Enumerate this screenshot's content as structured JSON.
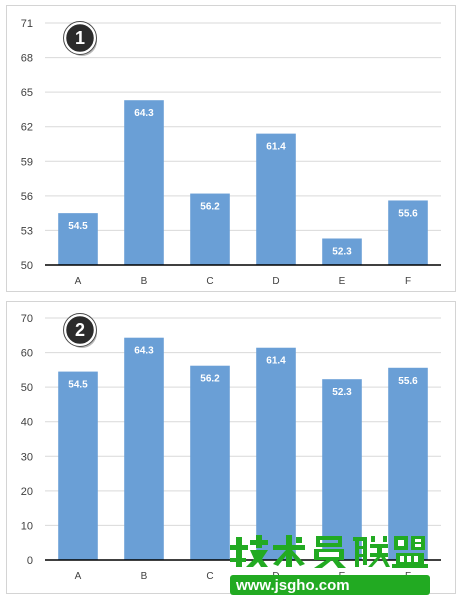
{
  "chart_data": [
    {
      "type": "bar",
      "badge": "1",
      "categories": [
        "A",
        "B",
        "C",
        "D",
        "E",
        "F"
      ],
      "values": [
        54.5,
        64.3,
        56.2,
        61.4,
        52.3,
        55.6
      ],
      "ylim": [
        50,
        71
      ],
      "yticks": [
        50,
        53,
        56,
        59,
        62,
        65,
        68,
        71
      ],
      "grid": true,
      "bar_color": "#6a9fd6"
    },
    {
      "type": "bar",
      "badge": "2",
      "categories": [
        "A",
        "B",
        "C",
        "D",
        "E",
        "F"
      ],
      "values": [
        54.5,
        64.3,
        56.2,
        61.4,
        52.3,
        55.6
      ],
      "ylim": [
        0,
        70
      ],
      "yticks": [
        0,
        10,
        20,
        30,
        40,
        50,
        60,
        70
      ],
      "grid": true,
      "bar_color": "#6a9fd6"
    }
  ],
  "watermark": {
    "logo_text": "技术员联盟",
    "url_text": "www.jsgho.com",
    "colors": {
      "green": "#22aa22",
      "orange": "#ff8a00"
    }
  }
}
